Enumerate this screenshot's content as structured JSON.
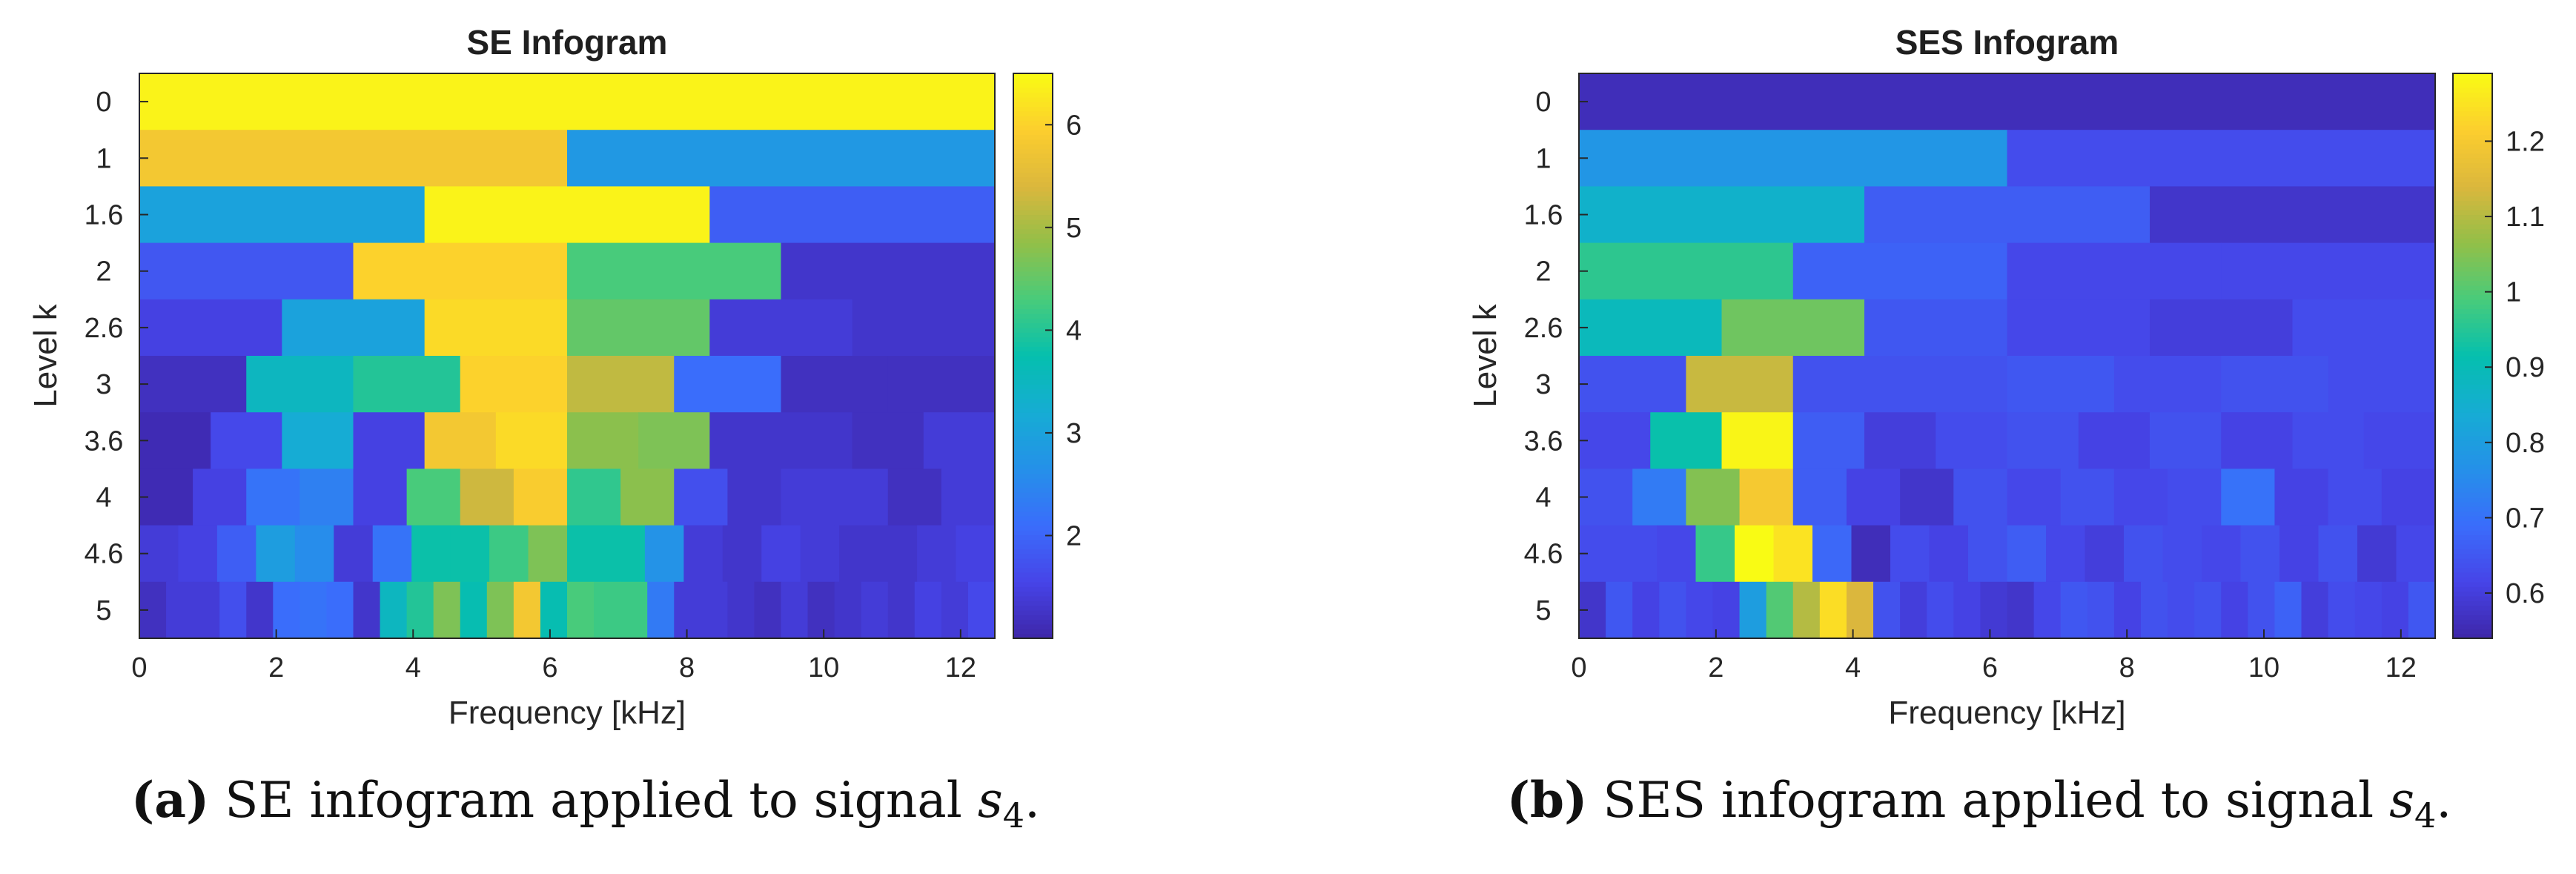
{
  "chart_data": [
    {
      "type": "heatmap",
      "title": "SE Infogram",
      "xlabel": "Frequency [kHz]",
      "ylabel": "Level k",
      "xlim": [
        0,
        12.5
      ],
      "xticks": [
        0,
        2,
        4,
        6,
        8,
        10,
        12
      ],
      "levels": [
        "0",
        "1",
        "1.6",
        "2",
        "2.6",
        "3",
        "3.6",
        "4",
        "4.6",
        "5"
      ],
      "colorbar": {
        "min": 1.0,
        "max": 6.5,
        "ticks": [
          2,
          3,
          4,
          5,
          6
        ]
      },
      "rows": [
        [
          6.4
        ],
        [
          5.8,
          2.8
        ],
        [
          3.0,
          6.4,
          1.9
        ],
        [
          1.8,
          6.0,
          4.3,
          1.3
        ],
        [
          1.5,
          3.0,
          6.1,
          4.5,
          1.4,
          1.3
        ],
        [
          1.2,
          3.5,
          4.0,
          6.0,
          5.2,
          2.1,
          1.2,
          1.2
        ],
        [
          1.1,
          1.6,
          3.2,
          1.5,
          5.8,
          6.1,
          4.8,
          4.7,
          1.3,
          1.3,
          1.2,
          1.4
        ],
        [
          1.1,
          1.5,
          2.2,
          2.4,
          1.5,
          4.3,
          5.3,
          5.9,
          4.1,
          4.8,
          1.7,
          1.3,
          1.4,
          1.4,
          1.2,
          1.4
        ],
        [
          1.4,
          1.5,
          1.9,
          2.9,
          2.6,
          1.4,
          2.2,
          3.8,
          3.8,
          4.2,
          4.7,
          3.8,
          3.8,
          2.7,
          1.4,
          1.3,
          1.5,
          1.4,
          1.3,
          1.3,
          1.4,
          1.5
        ],
        [
          1.2,
          1.4,
          1.4,
          1.7,
          1.3,
          2.1,
          2.2,
          2.1,
          1.3,
          3.5,
          4.0,
          4.7,
          3.7,
          4.7,
          5.8,
          3.7,
          4.3,
          4.2,
          4.2,
          2.3,
          1.4,
          1.4,
          1.3,
          1.2,
          1.4,
          1.2,
          1.3,
          1.4,
          1.3,
          1.5,
          1.4,
          1.6
        ]
      ]
    },
    {
      "type": "heatmap",
      "title": "SES Infogram",
      "xlabel": "Frequency [kHz]",
      "ylabel": "Level k",
      "xlim": [
        0,
        12.5
      ],
      "xticks": [
        0,
        2,
        4,
        6,
        8,
        10,
        12
      ],
      "levels": [
        "0",
        "1",
        "1.6",
        "2",
        "2.6",
        "3",
        "3.6",
        "4",
        "4.6",
        "5"
      ],
      "colorbar": {
        "min": 0.54,
        "max": 1.29,
        "ticks": [
          0.6,
          0.7,
          0.8,
          0.9,
          1,
          1.1,
          1.2
        ]
      },
      "rows": [
        [
          0.56
        ],
        [
          0.78,
          0.63
        ],
        [
          0.86,
          0.66,
          0.58
        ],
        [
          0.96,
          0.67,
          0.62,
          0.62
        ],
        [
          0.89,
          1.03,
          0.65,
          0.62,
          0.6,
          0.63
        ],
        [
          0.64,
          1.12,
          0.64,
          0.64,
          0.65,
          0.63,
          0.64,
          0.63
        ],
        [
          0.62,
          0.92,
          1.28,
          0.66,
          0.6,
          0.63,
          0.64,
          0.61,
          0.64,
          0.61,
          0.63,
          0.62
        ],
        [
          0.64,
          0.72,
          1.05,
          1.2,
          0.66,
          0.61,
          0.58,
          0.64,
          0.62,
          0.64,
          0.62,
          0.63,
          0.7,
          0.61,
          0.63,
          0.61
        ],
        [
          0.63,
          0.63,
          0.62,
          0.97,
          1.29,
          1.25,
          0.68,
          0.56,
          0.63,
          0.61,
          0.64,
          0.66,
          0.62,
          0.6,
          0.64,
          0.63,
          0.62,
          0.64,
          0.61,
          0.64,
          0.59,
          0.62
        ],
        [
          0.58,
          0.65,
          0.61,
          0.64,
          0.62,
          0.61,
          0.8,
          1.0,
          1.1,
          1.24,
          1.14,
          0.64,
          0.6,
          0.63,
          0.61,
          0.59,
          0.58,
          0.62,
          0.65,
          0.64,
          0.61,
          0.64,
          0.63,
          0.64,
          0.61,
          0.64,
          0.67,
          0.6,
          0.63,
          0.62,
          0.61,
          0.65
        ]
      ]
    }
  ],
  "captions": [
    {
      "label": "(a)",
      "text": "SE infogram applied to signal",
      "var": "s",
      "sub": "4",
      "end": "."
    },
    {
      "label": "(b)",
      "text": "SES infogram applied to signal",
      "var": "s",
      "sub": "4",
      "end": "."
    }
  ]
}
